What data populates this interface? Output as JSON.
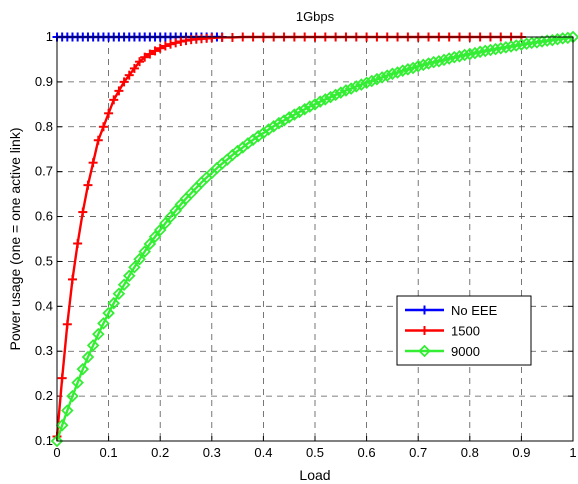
{
  "chart_data": {
    "type": "line",
    "title": "1Gbps",
    "xlabel": "Load",
    "ylabel": "Power usage (one = one active link)",
    "xlim": [
      0,
      1
    ],
    "ylim": [
      0.1,
      1
    ],
    "xticks": [
      0,
      0.1,
      0.2,
      0.3,
      0.4,
      0.5,
      0.6,
      0.7,
      0.8,
      0.9,
      1
    ],
    "xtick_labels": [
      "0",
      "0.1",
      "0.2",
      "0.3",
      "0.4",
      "0.5",
      "0.6",
      "0.7",
      "0.8",
      "0.9",
      "1"
    ],
    "yticks": [
      0.1,
      0.2,
      0.3,
      0.4,
      0.5,
      0.6,
      0.7,
      0.8,
      0.9,
      1
    ],
    "ytick_labels": [
      "0.1",
      "0.2",
      "0.3",
      "0.4",
      "0.5",
      "0.6",
      "0.7",
      "0.8",
      "0.9",
      "1"
    ],
    "grid": true,
    "legend_position": "lower-right",
    "series": [
      {
        "name": "No EEE",
        "color": "#0000ff",
        "marker": "plus",
        "x": [
          0,
          0.01,
          0.02,
          0.03,
          0.04,
          0.05,
          0.06,
          0.07,
          0.08,
          0.09,
          0.1,
          0.11,
          0.12,
          0.13,
          0.14,
          0.15,
          0.16,
          0.17,
          0.18,
          0.19,
          0.2,
          0.21,
          0.22,
          0.23,
          0.24,
          0.25,
          0.26,
          0.27,
          0.28,
          0.29,
          0.3,
          0.31,
          0.32
        ],
        "y": [
          1,
          1,
          1,
          1,
          1,
          1,
          1,
          1,
          1,
          1,
          1,
          1,
          1,
          1,
          1,
          1,
          1,
          1,
          1,
          1,
          1,
          1,
          1,
          1,
          1,
          1,
          1,
          1,
          1,
          1,
          1,
          1,
          1
        ]
      },
      {
        "name": "1500",
        "color": "#ff0000",
        "marker": "plus",
        "x": [
          0,
          0.01,
          0.02,
          0.03,
          0.04,
          0.05,
          0.06,
          0.07,
          0.08,
          0.09,
          0.1,
          0.11,
          0.12,
          0.13,
          0.14,
          0.15,
          0.16,
          0.17,
          0.18,
          0.19,
          0.2,
          0.21,
          0.22,
          0.23,
          0.24,
          0.25,
          0.26,
          0.27,
          0.28,
          0.29,
          0.3,
          0.32,
          0.34,
          0.36,
          0.38,
          0.4,
          0.42,
          0.44,
          0.46,
          0.48,
          0.5,
          0.52,
          0.54,
          0.56,
          0.58,
          0.6,
          0.62,
          0.64,
          0.66,
          0.68,
          0.7,
          0.72,
          0.74,
          0.76,
          0.78,
          0.8,
          0.82,
          0.84,
          0.86,
          0.88,
          0.9
        ],
        "y": [
          0.11,
          0.24,
          0.36,
          0.46,
          0.54,
          0.61,
          0.67,
          0.72,
          0.77,
          0.8,
          0.83,
          0.86,
          0.88,
          0.9,
          0.915,
          0.93,
          0.945,
          0.955,
          0.962,
          0.969,
          0.975,
          0.98,
          0.984,
          0.987,
          0.99,
          0.992,
          0.994,
          0.995,
          0.996,
          0.997,
          0.998,
          0.999,
          0.999,
          1,
          1,
          1,
          1,
          1,
          1,
          1,
          1,
          1,
          1,
          1,
          1,
          1,
          1,
          1,
          1,
          1,
          1,
          1,
          1,
          1,
          1,
          1,
          1,
          1,
          1,
          1,
          1
        ]
      },
      {
        "name": "9000",
        "color": "#33ee33",
        "marker": "diamond",
        "x": [
          0,
          0.01,
          0.02,
          0.03,
          0.04,
          0.05,
          0.06,
          0.07,
          0.08,
          0.09,
          0.1,
          0.11,
          0.12,
          0.13,
          0.14,
          0.15,
          0.16,
          0.17,
          0.18,
          0.19,
          0.2,
          0.21,
          0.22,
          0.23,
          0.24,
          0.25,
          0.26,
          0.27,
          0.28,
          0.29,
          0.3,
          0.31,
          0.32,
          0.33,
          0.34,
          0.35,
          0.36,
          0.37,
          0.38,
          0.39,
          0.4,
          0.41,
          0.42,
          0.43,
          0.44,
          0.45,
          0.46,
          0.47,
          0.48,
          0.49,
          0.5,
          0.51,
          0.52,
          0.53,
          0.54,
          0.55,
          0.56,
          0.57,
          0.58,
          0.59,
          0.6,
          0.61,
          0.62,
          0.63,
          0.64,
          0.65,
          0.66,
          0.67,
          0.68,
          0.69,
          0.7,
          0.71,
          0.72,
          0.73,
          0.74,
          0.75,
          0.76,
          0.77,
          0.78,
          0.79,
          0.8,
          0.81,
          0.82,
          0.83,
          0.84,
          0.85,
          0.86,
          0.87,
          0.88,
          0.89,
          0.9,
          0.91,
          0.92,
          0.93,
          0.94,
          0.95,
          0.96,
          0.97,
          0.98,
          0.99,
          1
        ],
        "y": [
          0.1,
          0.135,
          0.168,
          0.2,
          0.23,
          0.26,
          0.287,
          0.313,
          0.338,
          0.362,
          0.385,
          0.407,
          0.428,
          0.448,
          0.468,
          0.487,
          0.505,
          0.522,
          0.539,
          0.555,
          0.57,
          0.585,
          0.599,
          0.613,
          0.627,
          0.64,
          0.652,
          0.664,
          0.676,
          0.687,
          0.697,
          0.708,
          0.718,
          0.727,
          0.737,
          0.746,
          0.754,
          0.763,
          0.771,
          0.779,
          0.786,
          0.794,
          0.801,
          0.808,
          0.814,
          0.821,
          0.827,
          0.833,
          0.839,
          0.845,
          0.85,
          0.856,
          0.861,
          0.866,
          0.871,
          0.876,
          0.881,
          0.885,
          0.89,
          0.894,
          0.898,
          0.902,
          0.906,
          0.91,
          0.914,
          0.918,
          0.921,
          0.925,
          0.928,
          0.931,
          0.935,
          0.938,
          0.941,
          0.944,
          0.946,
          0.949,
          0.952,
          0.955,
          0.957,
          0.96,
          0.962,
          0.964,
          0.967,
          0.969,
          0.971,
          0.973,
          0.975,
          0.977,
          0.979,
          0.981,
          0.983,
          0.985,
          0.987,
          0.988,
          0.99,
          0.992,
          0.993,
          0.995,
          0.997,
          0.998,
          1
        ]
      }
    ]
  }
}
